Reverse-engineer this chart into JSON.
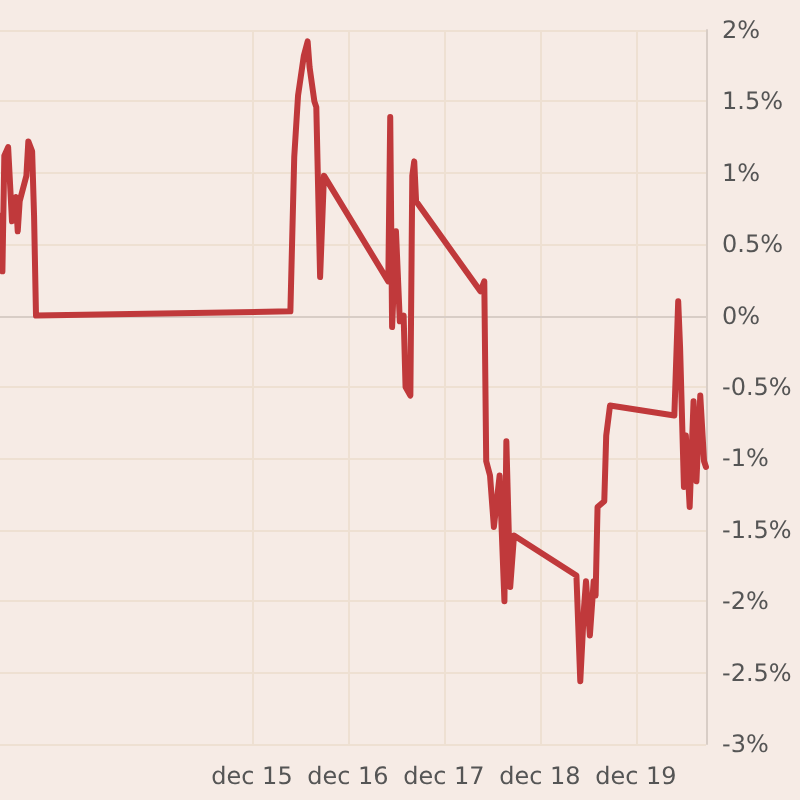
{
  "chart_data": {
    "type": "line",
    "x": [
      "--12-12T09:07",
      "--12-12T09:36",
      "--12-12T10:05",
      "--12-12T11:02",
      "--12-12T12:00",
      "--12-12T12:58",
      "--12-12T13:26",
      "--12-12T13:55",
      "--12-12T15:36",
      "--12-12T16:05",
      "--12-12T17:02",
      "--12-12T17:31",
      "--12-12T18:00",
      "--12-15T09:36",
      "--12-15T10:34",
      "--12-15T11:31",
      "--12-15T12:58",
      "--12-15T13:55",
      "--12-15T14:24",
      "--12-15T15:36",
      "--12-15T16:05",
      "--12-15T17:02",
      "--12-15T18:00",
      "--12-16T10:05",
      "--12-16T10:34",
      "--12-16T11:02",
      "--12-16T12:00",
      "--12-16T12:58",
      "--12-16T13:55",
      "--12-16T14:24",
      "--12-16T15:36",
      "--12-16T16:05",
      "--12-16T16:34",
      "--12-16T17:02",
      "--12-17T09:07",
      "--12-17T10:05",
      "--12-17T10:34",
      "--12-17T11:31",
      "--12-17T12:29",
      "--12-17T13:55",
      "--12-17T15:07",
      "--12-17T15:36",
      "--12-17T16:34",
      "--12-17T17:31",
      "--12-18T09:07",
      "--12-18T10:05",
      "--12-18T11:02",
      "--12-18T11:31",
      "--12-18T12:29",
      "--12-18T13:26",
      "--12-18T13:55",
      "--12-18T14:24",
      "--12-18T16:05",
      "--12-18T16:34",
      "--12-18T17:31",
      "--12-19T09:36",
      "--12-19T10:34",
      "--12-19T11:02",
      "--12-19T12:00",
      "--12-19T12:29",
      "--12-19T13:26",
      "--12-19T14:24",
      "--12-19T15:07",
      "--12-19T16:05",
      "--12-19T17:02",
      "--12-19T17:31"
    ],
    "series": [
      {
        "color": "#c0393b",
        "values": [
          0.7,
          0.31,
          1.12,
          1.18,
          0.66,
          0.83,
          0.59,
          0.8,
          0.98,
          1.22,
          1.15,
          0.7,
          0.0,
          0.03,
          1.11,
          1.54,
          1.82,
          1.92,
          1.74,
          1.5,
          1.46,
          0.27,
          0.98,
          0.24,
          1.39,
          -0.08,
          0.59,
          -0.04,
          0,
          -0.5,
          -0.56,
          0.98,
          1.08,
          0.8,
          0.17,
          0.24,
          -1.02,
          -1.12,
          -1.48,
          -1.12,
          -2.0,
          -0.88,
          -1.9,
          -1.54,
          -1.82,
          -2.56,
          -2.04,
          -1.86,
          -2.24,
          -1.86,
          -1.96,
          -1.34,
          -1.3,
          -0.84,
          -0.63,
          -0.7,
          0.1,
          -0.22,
          -1.2,
          -0.84,
          -1.34,
          -0.6,
          -1.16,
          -0.56,
          -1.02,
          -1.06
        ]
      }
    ],
    "xlim": [
      "--12-12T09:00",
      "--12-19T17:31"
    ],
    "xticks": [
      {
        "value": "--12-15",
        "label": "dec 15"
      },
      {
        "value": "--12-16",
        "label": "dec 16"
      },
      {
        "value": "--12-17",
        "label": "dec 17"
      },
      {
        "value": "--12-18",
        "label": "dec 18"
      },
      {
        "value": "--12-19",
        "label": "dec 19"
      }
    ],
    "ylim": [
      -3,
      2
    ],
    "yticks": [
      {
        "value": -3,
        "label": "-3%"
      },
      {
        "value": -2.5,
        "label": "-2.5%"
      },
      {
        "value": -2,
        "label": "-2%"
      },
      {
        "value": -1.5,
        "label": "-1.5%"
      },
      {
        "value": -1,
        "label": "-1%"
      },
      {
        "value": -0.5,
        "label": "-0.5%"
      },
      {
        "value": 0,
        "label": "0%"
      },
      {
        "value": 0.5,
        "label": "0.5%"
      },
      {
        "value": 1,
        "label": "1%"
      },
      {
        "value": 1.5,
        "label": "1.5%"
      },
      {
        "value": 2,
        "label": "2%"
      }
    ],
    "grid": true,
    "marker": "none",
    "line_style": "solid"
  }
}
